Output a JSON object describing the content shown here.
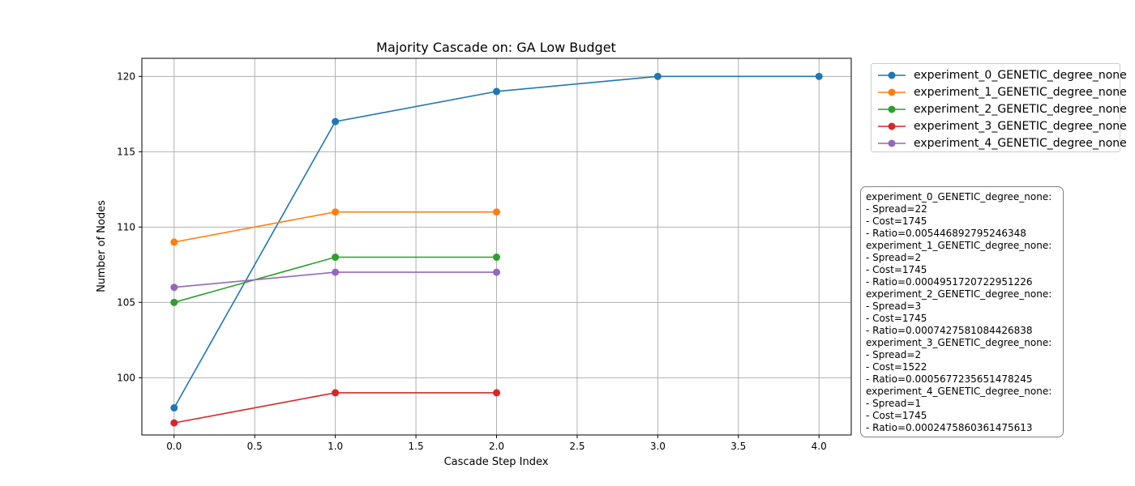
{
  "chart_data": {
    "type": "line",
    "title": "Majority Cascade on: GA Low Budget",
    "xlabel": "Cascade Step Index",
    "ylabel": "Number of Nodes",
    "xlim": [
      -0.2,
      4.2
    ],
    "ylim": [
      96.2,
      121.2
    ],
    "xticks": [
      0.0,
      0.5,
      1.0,
      1.5,
      2.0,
      2.5,
      3.0,
      3.5,
      4.0
    ],
    "xtick_labels": [
      "0.0",
      "0.5",
      "1.0",
      "1.5",
      "2.0",
      "2.5",
      "3.0",
      "3.5",
      "4.0"
    ],
    "yticks": [
      100,
      105,
      110,
      115,
      120
    ],
    "ytick_labels": [
      "100",
      "105",
      "110",
      "115",
      "120"
    ],
    "grid": true,
    "legend_position": "outside-top-right",
    "series": [
      {
        "name": "experiment_0_GENETIC_degree_none",
        "color": "#1f77b4",
        "x": [
          0,
          1,
          2,
          3,
          4
        ],
        "values": [
          98,
          117,
          119,
          120,
          120
        ]
      },
      {
        "name": "experiment_1_GENETIC_degree_none",
        "color": "#ff7f0e",
        "x": [
          0,
          1,
          2
        ],
        "values": [
          109,
          111,
          111
        ]
      },
      {
        "name": "experiment_2_GENETIC_degree_none",
        "color": "#2ca02c",
        "x": [
          0,
          1,
          2
        ],
        "values": [
          105,
          108,
          108
        ]
      },
      {
        "name": "experiment_3_GENETIC_degree_none",
        "color": "#d62728",
        "x": [
          0,
          1,
          2
        ],
        "values": [
          97,
          99,
          99
        ]
      },
      {
        "name": "experiment_4_GENETIC_degree_none",
        "color": "#9467bd",
        "x": [
          0,
          1,
          2
        ],
        "values": [
          106,
          107,
          107
        ]
      }
    ],
    "annotation_lines": [
      "experiment_0_GENETIC_degree_none:",
      "- Spread=22",
      "- Cost=1745",
      "- Ratio=0.005446892795246348",
      "experiment_1_GENETIC_degree_none:",
      "- Spread=2",
      "- Cost=1745",
      "- Ratio=0.0004951720722951226",
      "experiment_2_GENETIC_degree_none:",
      "- Spread=3",
      "- Cost=1745",
      "- Ratio=0.0007427581084426838",
      "experiment_3_GENETIC_degree_none:",
      "- Spread=2",
      "- Cost=1522",
      "- Ratio=0.0005677235651478245",
      "experiment_4_GENETIC_degree_none:",
      "- Spread=1",
      "- Cost=1745",
      "- Ratio=0.0002475860361475613"
    ]
  }
}
